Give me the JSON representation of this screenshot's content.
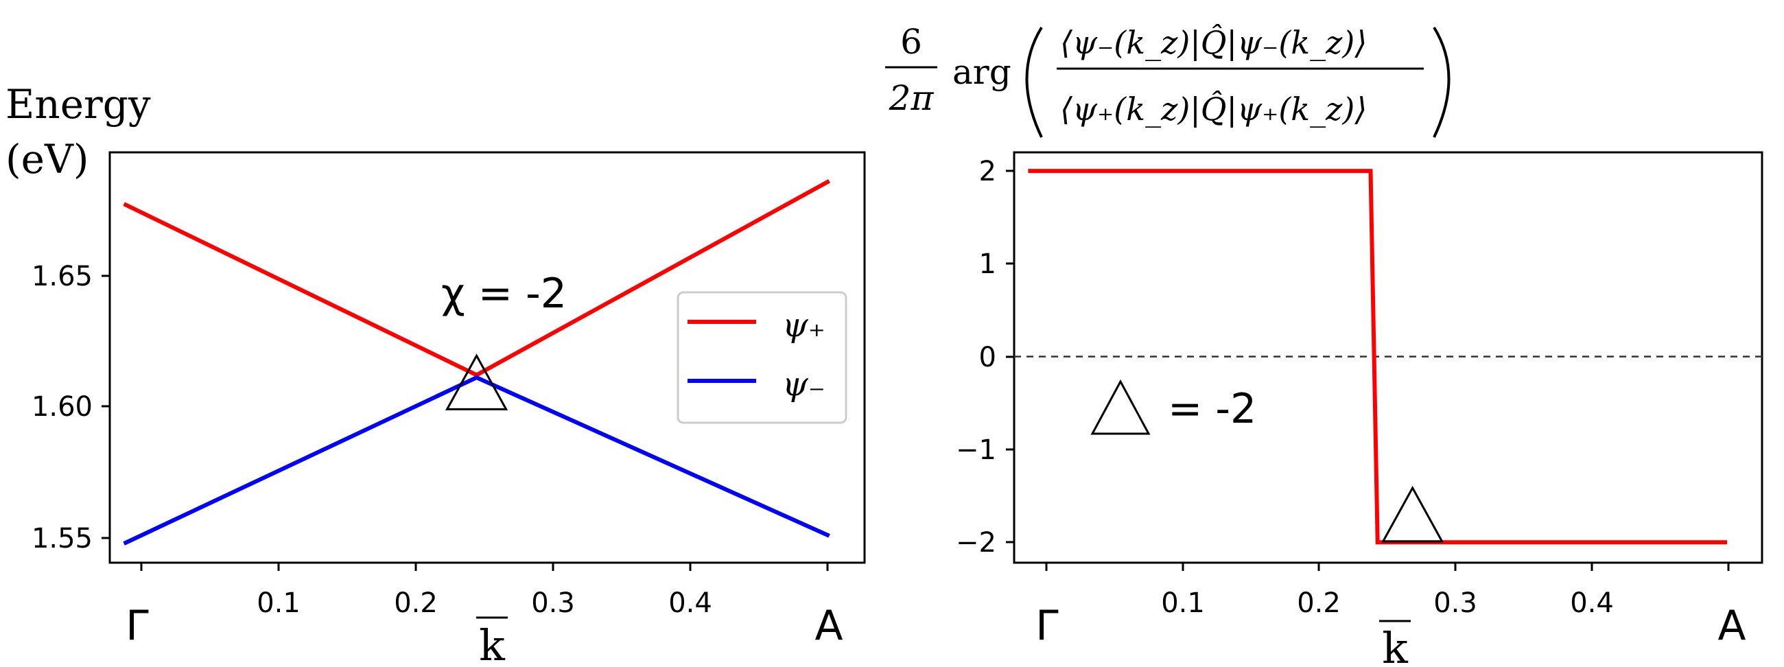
{
  "chart_data": [
    {
      "type": "line",
      "ylabel_line1": "Energy",
      "ylabel_line2": "(eV)",
      "xlabel": "k",
      "xlim": [
        -0.01,
        0.525
      ],
      "ylim": [
        1.5405,
        1.7012
      ],
      "x_ticks": [
        {
          "value": 0,
          "label": "Γ"
        },
        {
          "value": 0.1,
          "label": "0.1"
        },
        {
          "value": 0.2,
          "label": "0.2"
        },
        {
          "value": 0.3,
          "label": "0.3"
        },
        {
          "value": 0.4,
          "label": "0.4"
        },
        {
          "value": 0.5,
          "label": "A"
        }
      ],
      "y_ticks": [
        {
          "value": 1.55,
          "label": "1.55"
        },
        {
          "value": 1.6,
          "label": "1.60"
        },
        {
          "value": 1.65,
          "label": "1.65"
        }
      ],
      "series": [
        {
          "name": "ψ₊",
          "color": "#ff0000",
          "x": [
            0,
            0.25,
            0.5
          ],
          "y": [
            1.681,
            1.614,
            1.69
          ]
        },
        {
          "name": "ψ₋",
          "color": "#0000ff",
          "x": [
            0,
            0.25,
            0.5
          ],
          "y": [
            1.548,
            1.613,
            1.551
          ]
        }
      ],
      "annotation": "χ = -2",
      "marker": {
        "shape": "triangle",
        "x": 0.25,
        "y": 1.6135
      },
      "legend_position": "right"
    },
    {
      "type": "line",
      "title_latex": "(6/2π) arg( ⟨ψ₋(k_z)|Q̂|ψ₋(k_z)⟩ / ⟨ψ₊(k_z)|Q̂|ψ₊(k_z)⟩ )",
      "xlabel": "k",
      "xlim": [
        -0.01,
        0.525
      ],
      "ylim": [
        -2.22,
        2.2
      ],
      "x_ticks": [
        {
          "value": 0,
          "label": "Γ"
        },
        {
          "value": 0.1,
          "label": "0.1"
        },
        {
          "value": 0.2,
          "label": "0.2"
        },
        {
          "value": 0.3,
          "label": "0.3"
        },
        {
          "value": 0.4,
          "label": "0.4"
        },
        {
          "value": 0.5,
          "label": "A"
        }
      ],
      "y_ticks": [
        {
          "value": 2,
          "label": "2"
        },
        {
          "value": 1,
          "label": "1"
        },
        {
          "value": 0,
          "label": "0"
        },
        {
          "value": -1,
          "label": "−1"
        },
        {
          "value": -2,
          "label": "−2"
        }
      ],
      "series": [
        {
          "color": "#ff0000",
          "x": [
            0,
            0.245,
            0.25,
            0.5
          ],
          "y": [
            2,
            2,
            -2,
            -2
          ]
        }
      ],
      "reference_line": {
        "y": 0,
        "style": "dashed"
      },
      "annotation": "= -2",
      "marker": {
        "shape": "triangle",
        "x": 0.275,
        "y": -1.88
      }
    }
  ]
}
